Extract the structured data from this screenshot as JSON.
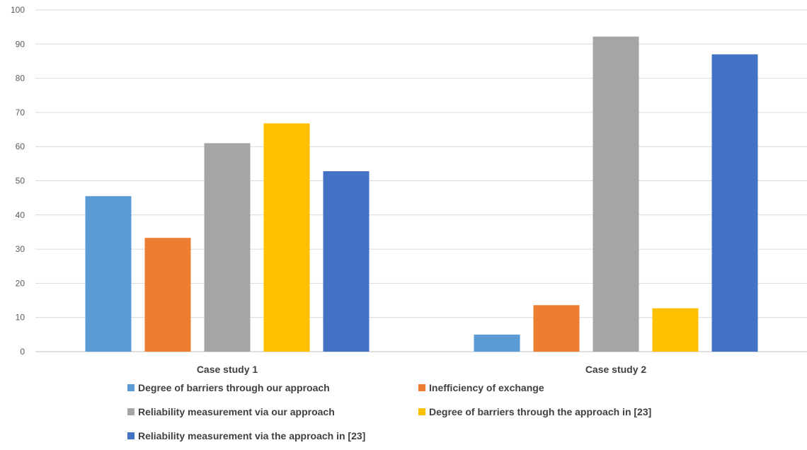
{
  "chart_data": {
    "type": "bar",
    "categories": [
      "Case study 1",
      "Case study 2"
    ],
    "series": [
      {
        "name": "Degree of barriers through our approach",
        "color": "#5B9BD5",
        "values": [
          45.5,
          5
        ]
      },
      {
        "name": "Inefficiency of exchange",
        "color": "#ED7D31",
        "values": [
          33.3,
          13.6
        ]
      },
      {
        "name": "Reliability measurement via our approach",
        "color": "#A5A5A5",
        "values": [
          61,
          92.2
        ]
      },
      {
        "name": "Degree of barriers through the approach in [23]",
        "color": "#FFC000",
        "values": [
          66.8,
          12.7
        ]
      },
      {
        "name": "Reliability measurement via the approach in [23]",
        "color": "#4472C4",
        "values": [
          52.8,
          87
        ]
      }
    ],
    "ylim": [
      0,
      100
    ],
    "yticks": [
      0,
      10,
      20,
      30,
      40,
      50,
      60,
      70,
      80,
      90,
      100
    ],
    "grid": true,
    "legend_position": "bottom",
    "title": "",
    "xlabel": "",
    "ylabel": ""
  }
}
